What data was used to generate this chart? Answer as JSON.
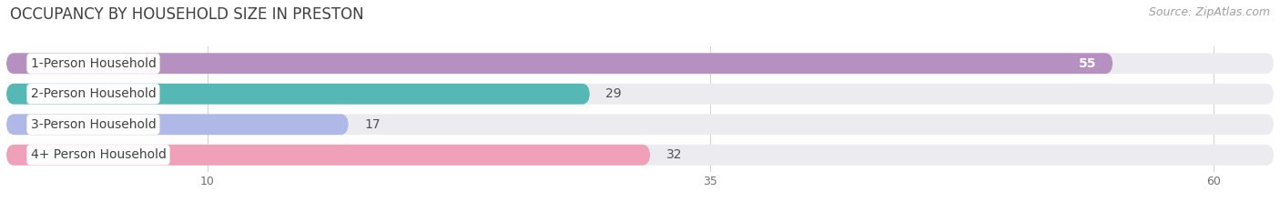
{
  "title": "OCCUPANCY BY HOUSEHOLD SIZE IN PRESTON",
  "source": "Source: ZipAtlas.com",
  "categories": [
    "1-Person Household",
    "2-Person Household",
    "3-Person Household",
    "4+ Person Household"
  ],
  "values": [
    55,
    29,
    17,
    32
  ],
  "bar_colors": [
    "#b590c0",
    "#55b8b4",
    "#b0b8e8",
    "#f0a0b8"
  ],
  "bar_bg_color": "#ebebf0",
  "xlim_max": 63,
  "xticks": [
    10,
    35,
    60
  ],
  "title_color": "#404040",
  "source_color": "#a0a0a0",
  "title_fontsize": 12,
  "source_fontsize": 9,
  "bar_label_fontsize": 10,
  "cat_label_fontsize": 10,
  "tick_fontsize": 9,
  "bar_height": 0.68,
  "bar_gap": 0.32
}
